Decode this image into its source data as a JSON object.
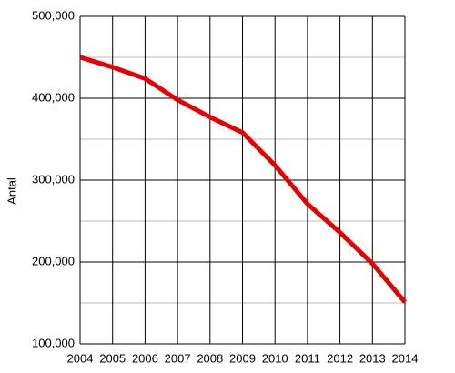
{
  "chart_data": {
    "type": "line",
    "y_label": "Antal",
    "x": [
      2004,
      2005,
      2006,
      2007,
      2008,
      2009,
      2010,
      2011,
      2012,
      2013,
      2014
    ],
    "series": [
      {
        "name": null,
        "color": "#e60000",
        "values": [
          450000,
          438000,
          424000,
          398000,
          377000,
          358000,
          318000,
          271000,
          236000,
          198000,
          151000
        ]
      }
    ],
    "xlim": [
      2004,
      2014
    ],
    "xticks": [
      2004,
      2005,
      2006,
      2007,
      2008,
      2009,
      2010,
      2011,
      2012,
      2013,
      2014
    ],
    "ylim": [
      100000,
      500000
    ],
    "yticks": [
      {
        "value": 100000,
        "label": "100,000"
      },
      {
        "value": 200000,
        "label": "200,000"
      },
      {
        "value": 300000,
        "label": "300,000"
      },
      {
        "value": 400000,
        "label": "400,000"
      },
      {
        "value": 500000,
        "label": "500,000"
      }
    ],
    "grid": true
  }
}
